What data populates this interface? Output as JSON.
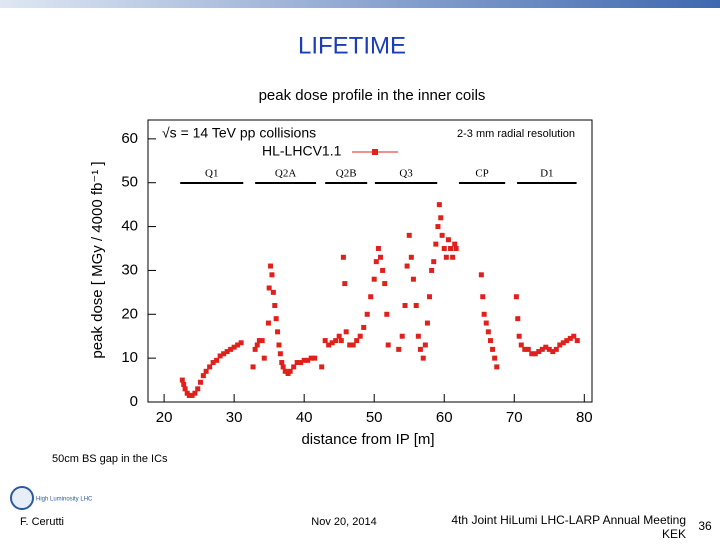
{
  "slide_title": "LIFETIME",
  "chart_data": {
    "type": "scatter",
    "title": "peak dose profile in the inner coils",
    "x_label": "distance from IP [m]",
    "y_label": "peak dose [ MGy / 4000 fb⁻¹ ]",
    "legend_title": "√s = 14 TeV pp collisions",
    "annotation": "2-3 mm radial resolution",
    "xlim": [
      17.7,
      81.1
    ],
    "ylim": [
      0,
      64.3
    ],
    "xticks": [
      20,
      30,
      40,
      50,
      60,
      70,
      80
    ],
    "yticks": [
      0,
      10,
      20,
      30,
      40,
      50,
      60
    ],
    "grid": false,
    "magnets": [
      {
        "label": "Q1",
        "x": [
          22.3,
          31.3
        ]
      },
      {
        "label": "Q2A",
        "x": [
          33.0,
          41.7
        ]
      },
      {
        "label": "Q2B",
        "x": [
          43.0,
          49.0
        ]
      },
      {
        "label": "Q3",
        "x": [
          50.1,
          59.0
        ]
      },
      {
        "label": "CP",
        "x": [
          62.1,
          68.7
        ]
      },
      {
        "label": "D1",
        "x": [
          70.4,
          78.9
        ]
      }
    ],
    "series": [
      {
        "name": "HL-LHCV1.1",
        "color": "#e0201b",
        "x": [
          22.6,
          22.8,
          23,
          23.3,
          23.6,
          24,
          24.4,
          24.8,
          25.2,
          25.6,
          26,
          26.5,
          27,
          27.5,
          28,
          28.5,
          29,
          29.5,
          30,
          30.5,
          31,
          32.7,
          33,
          33.3,
          33.6,
          34,
          34.3,
          34.9,
          35,
          35.2,
          35.4,
          35.6,
          35.8,
          36,
          36.2,
          36.4,
          36.6,
          36.8,
          37,
          37.3,
          37.7,
          38,
          38.5,
          39,
          39.5,
          40,
          40.5,
          41,
          41.5,
          42.5,
          43,
          43.5,
          44,
          44.5,
          45,
          45.3,
          45.6,
          45.8,
          46,
          46.5,
          47,
          47.5,
          48,
          48.5,
          49,
          49.5,
          50,
          50.3,
          50.6,
          50.9,
          51.2,
          51.5,
          51.8,
          52,
          53.5,
          54,
          54.4,
          54.7,
          55,
          55.3,
          55.6,
          56,
          56.3,
          56.6,
          57,
          57.3,
          57.6,
          57.9,
          58.2,
          58.5,
          58.8,
          59.1,
          59.3,
          59.5,
          59.7,
          60,
          60.3,
          60.6,
          60.9,
          61.2,
          61.5,
          61.7,
          65.3,
          65.5,
          65.7,
          66,
          66.3,
          66.6,
          66.9,
          67.2,
          67.5,
          70.3,
          70.5,
          70.7,
          71,
          71.5,
          72,
          72.5,
          73,
          73.5,
          74,
          74.5,
          75,
          75.5,
          76,
          76.5,
          77,
          77.5,
          78,
          78.5,
          79
        ],
        "values": [
          5,
          4,
          3,
          2,
          1.5,
          1.5,
          2,
          3,
          4.5,
          6,
          7,
          8,
          9,
          9.5,
          10.5,
          11,
          11.5,
          12,
          12.5,
          13,
          13.5,
          8,
          12,
          13,
          14,
          14,
          10,
          18,
          26,
          31,
          29,
          25,
          22,
          19,
          16,
          13,
          11,
          9,
          8,
          7,
          6.5,
          7,
          8,
          9,
          9,
          9.5,
          9.5,
          10,
          10,
          8,
          14,
          13,
          13.5,
          14,
          15,
          14,
          33,
          27,
          16,
          13,
          13,
          14,
          15,
          17,
          20,
          24,
          28,
          32,
          35,
          33,
          30,
          27,
          20,
          13,
          12,
          15,
          22,
          31,
          38,
          33,
          28,
          22,
          15,
          12,
          10,
          13,
          18,
          24,
          30,
          32,
          36,
          40,
          45,
          42,
          38,
          35,
          33,
          37,
          35,
          33,
          36,
          35,
          29,
          24,
          20,
          18,
          16,
          14,
          12,
          10,
          8,
          24,
          19,
          15,
          13,
          12,
          12,
          11,
          11,
          11.5,
          12,
          12.5,
          12,
          11.5,
          12,
          13,
          13.5,
          14,
          14.5,
          15,
          14
        ]
      }
    ]
  },
  "footer": {
    "note": "50cm BS gap in the ICs",
    "logo": "High Luminosity LHC",
    "author": "F. Cerutti",
    "date": "Nov 20, 2014",
    "meeting": "4th Joint HiLumi LHC-LARP Annual Meeting",
    "venue": "KEK",
    "page": "36"
  }
}
